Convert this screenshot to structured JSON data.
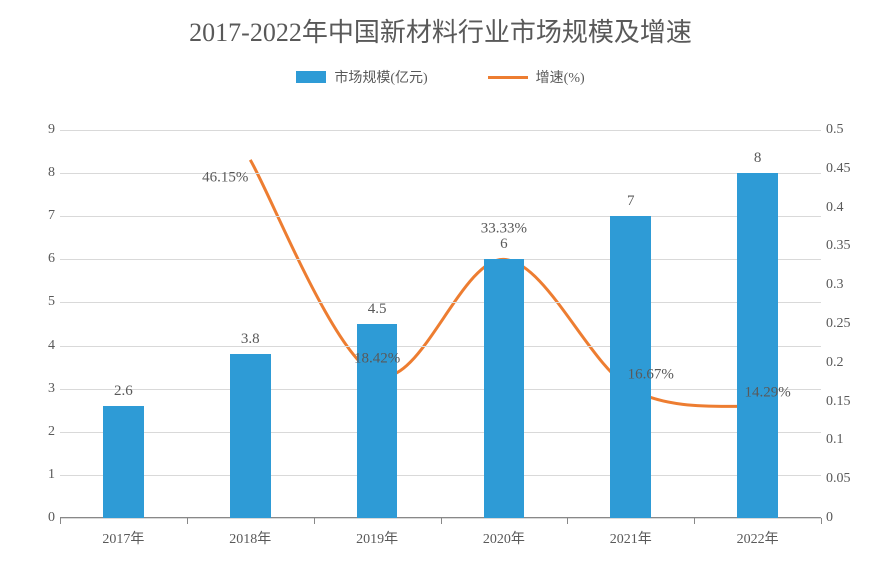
{
  "chart": {
    "type": "bar+line",
    "title": "2017-2022年中国新材料行业市场规模及增速",
    "title_fontsize": 26,
    "title_color": "#595959",
    "background_color": "#ffffff",
    "grid_color": "#d9d9d9",
    "axis_color": "#888888",
    "label_color": "#595959",
    "label_fontsize": 14,
    "categories": [
      "2017年",
      "2018年",
      "2019年",
      "2020年",
      "2021年",
      "2022年"
    ],
    "series1": {
      "name": "市场规模(亿元)",
      "type": "bar",
      "color": "#2e9bd6",
      "values": [
        2.6,
        3.8,
        4.5,
        6,
        7,
        8
      ],
      "value_labels": [
        "2.6",
        "3.8",
        "4.5",
        "6",
        "7",
        "8"
      ],
      "bar_width_ratio": 0.32
    },
    "series2": {
      "name": "增速(%)",
      "type": "line",
      "color": "#ed7d31",
      "line_width": 3,
      "values": [
        null,
        0.4615,
        0.1842,
        0.3333,
        0.1667,
        0.1429
      ],
      "value_labels": [
        "",
        "46.15%",
        "18.42%",
        "33.33%",
        "16.67%",
        "14.29%"
      ]
    },
    "y_left": {
      "min": 0,
      "max": 9,
      "step": 1,
      "ticks": [
        "0",
        "1",
        "2",
        "3",
        "4",
        "5",
        "6",
        "7",
        "8",
        "9"
      ]
    },
    "y_right": {
      "min": 0,
      "max": 0.5,
      "step": 0.05,
      "ticks": [
        "0",
        "0.05",
        "0.1",
        "0.15",
        "0.2",
        "0.25",
        "0.3",
        "0.35",
        "0.4",
        "0.45",
        "0.5"
      ]
    }
  }
}
